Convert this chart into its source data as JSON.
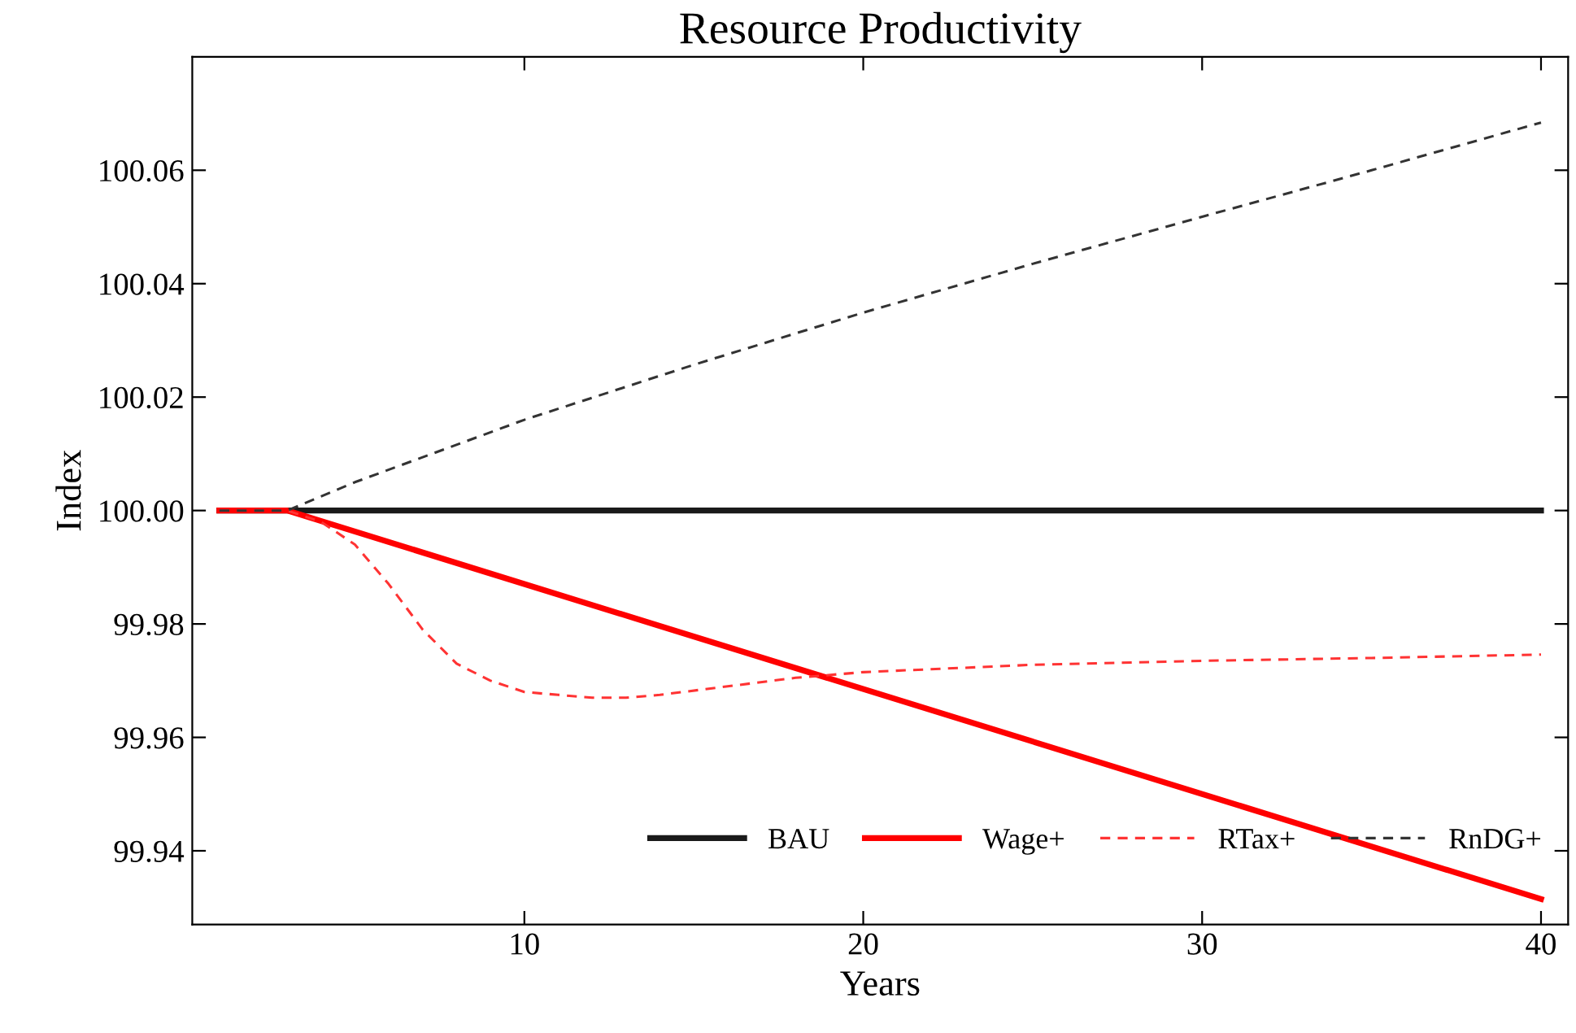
{
  "chart_data": {
    "type": "line",
    "title": "Resource Productivity",
    "xlabel": "Years",
    "ylabel": "Index",
    "xlim": [
      0.2,
      40.8
    ],
    "xticks": [
      10,
      20,
      30,
      40
    ],
    "ylim": [
      99.927,
      100.08
    ],
    "yticks": [
      {
        "value": 99.94,
        "label": "99.94"
      },
      {
        "value": 99.96,
        "label": "99.96"
      },
      {
        "value": 99.98,
        "label": "99.98"
      },
      {
        "value": 100.0,
        "label": "100.00"
      },
      {
        "value": 100.02,
        "label": "100.02"
      },
      {
        "value": 100.04,
        "label": "100.04"
      },
      {
        "value": 100.06,
        "label": "100.06"
      }
    ],
    "grid": false,
    "legend": "bottom right",
    "marker": "none",
    "series": [
      {
        "name": "BAU",
        "color": "#1a1a1a",
        "line_style": "solid",
        "x": [
          1,
          40
        ],
        "values": [
          100.0,
          100.0
        ]
      },
      {
        "name": "Wage+",
        "color": "#ff0000",
        "line_style": "solid",
        "x": [
          1,
          3,
          40
        ],
        "values": [
          100.0,
          100.0,
          99.9315
        ]
      },
      {
        "name": "RTax+",
        "color": "#ff3333",
        "line_style": "dashed",
        "x": [
          1,
          2,
          3,
          4,
          5,
          6,
          7,
          8,
          9,
          10,
          11,
          12,
          13,
          14,
          16,
          18,
          20,
          25,
          30,
          35,
          40
        ],
        "values": [
          100.0,
          100.0,
          100.0,
          99.998,
          99.994,
          99.987,
          99.979,
          99.973,
          99.97,
          99.968,
          99.9675,
          99.967,
          99.967,
          99.9675,
          99.969,
          99.9705,
          99.9715,
          99.9728,
          99.9735,
          99.974,
          99.9746
        ]
      },
      {
        "name": "RnDG+",
        "color": "#333333",
        "line_style": "dashed",
        "x": [
          1,
          3,
          5,
          10,
          15,
          20,
          25,
          30,
          35,
          40
        ],
        "values": [
          100.0,
          100.0,
          100.005,
          100.016,
          100.0257,
          100.0349,
          100.0435,
          100.0518,
          100.06,
          100.0684
        ]
      }
    ]
  }
}
